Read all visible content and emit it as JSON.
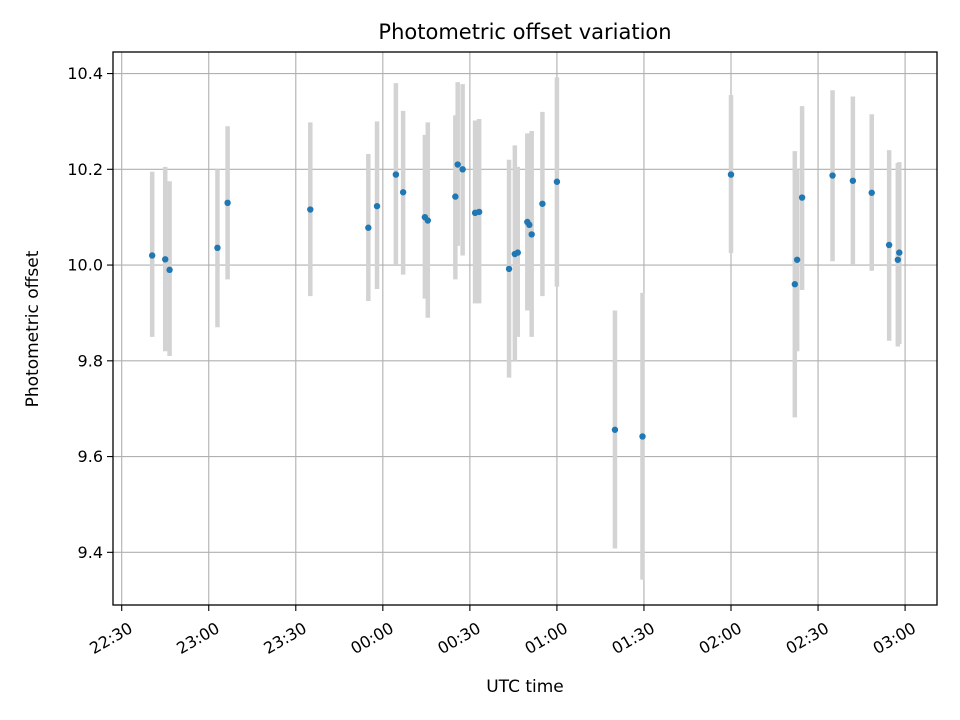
{
  "colors": {
    "marker": "#1f77b4",
    "errorbar": "#d3d3d3",
    "grid": "#b0b0b0",
    "background": "#ffffff"
  },
  "chart_data": {
    "type": "scatter",
    "title": "Photometric offset variation",
    "xlabel": "UTC time",
    "ylabel": "Photometric offset",
    "x_unit": "UTC time (HH:MM), times after midnight are on the following day",
    "xlim": [
      "22:27",
      "03:11"
    ],
    "ylim": [
      9.29,
      10.445
    ],
    "x_ticks": [
      "22:30",
      "23:00",
      "23:30",
      "00:00",
      "00:30",
      "01:00",
      "01:30",
      "02:00",
      "02:30",
      "03:00"
    ],
    "y_ticks": [
      "9.4",
      "9.6",
      "9.8",
      "10.0",
      "10.2",
      "10.4"
    ],
    "grid": true,
    "legend": "none",
    "points": [
      {
        "x": "22:40.5",
        "y": 10.02,
        "lo": 9.85,
        "hi": 10.195
      },
      {
        "x": "22:45.0",
        "y": 10.012,
        "lo": 9.82,
        "hi": 10.205
      },
      {
        "x": "22:46.5",
        "y": 9.99,
        "lo": 9.81,
        "hi": 10.175
      },
      {
        "x": "23:03.0",
        "y": 10.036,
        "lo": 9.87,
        "hi": 10.2
      },
      {
        "x": "23:06.5",
        "y": 10.13,
        "lo": 9.97,
        "hi": 10.29
      },
      {
        "x": "23:35.0",
        "y": 10.116,
        "lo": 9.935,
        "hi": 10.298
      },
      {
        "x": "23:55.0",
        "y": 10.078,
        "lo": 9.925,
        "hi": 10.232
      },
      {
        "x": "23:58.0",
        "y": 10.123,
        "lo": 9.95,
        "hi": 10.3
      },
      {
        "x": "00:04.5",
        "y": 10.189,
        "lo": 10.0,
        "hi": 10.38
      },
      {
        "x": "00:07.0",
        "y": 10.152,
        "lo": 9.98,
        "hi": 10.322
      },
      {
        "x": "00:14.5",
        "y": 10.1,
        "lo": 9.93,
        "hi": 10.272
      },
      {
        "x": "00:15.5",
        "y": 10.093,
        "lo": 9.89,
        "hi": 10.298
      },
      {
        "x": "00:25.0",
        "y": 10.143,
        "lo": 9.97,
        "hi": 10.313
      },
      {
        "x": "00:25.8",
        "y": 10.21,
        "lo": 10.04,
        "hi": 10.382
      },
      {
        "x": "00:27.5",
        "y": 10.2,
        "lo": 10.02,
        "hi": 10.378
      },
      {
        "x": "00:31.8",
        "y": 10.109,
        "lo": 9.92,
        "hi": 10.302
      },
      {
        "x": "00:33.2",
        "y": 10.111,
        "lo": 9.92,
        "hi": 10.305
      },
      {
        "x": "00:43.5",
        "y": 9.992,
        "lo": 9.765,
        "hi": 10.22
      },
      {
        "x": "00:45.5",
        "y": 10.023,
        "lo": 9.8,
        "hi": 10.25
      },
      {
        "x": "00:46.5",
        "y": 10.026,
        "lo": 9.85,
        "hi": 10.205
      },
      {
        "x": "00:49.8",
        "y": 10.09,
        "lo": 9.905,
        "hi": 10.275
      },
      {
        "x": "00:50.5",
        "y": 10.084,
        "lo": 9.91,
        "hi": 10.268
      },
      {
        "x": "00:51.3",
        "y": 10.064,
        "lo": 9.85,
        "hi": 10.28
      },
      {
        "x": "00:55.0",
        "y": 10.128,
        "lo": 9.935,
        "hi": 10.32
      },
      {
        "x": "01:00.0",
        "y": 10.174,
        "lo": 9.955,
        "hi": 10.392
      },
      {
        "x": "01:20.0",
        "y": 9.656,
        "lo": 9.408,
        "hi": 9.905
      },
      {
        "x": "01:29.5",
        "y": 9.642,
        "lo": 9.343,
        "hi": 9.942
      },
      {
        "x": "02:00.0",
        "y": 10.189,
        "lo": 10.025,
        "hi": 10.355
      },
      {
        "x": "02:22.0",
        "y": 9.96,
        "lo": 9.682,
        "hi": 10.238
      },
      {
        "x": "02:22.8",
        "y": 10.011,
        "lo": 9.82,
        "hi": 10.2
      },
      {
        "x": "02:24.5",
        "y": 10.141,
        "lo": 9.948,
        "hi": 10.332
      },
      {
        "x": "02:35.0",
        "y": 10.187,
        "lo": 10.008,
        "hi": 10.365
      },
      {
        "x": "02:42.0",
        "y": 10.176,
        "lo": 10.0,
        "hi": 10.352
      },
      {
        "x": "02:48.5",
        "y": 10.151,
        "lo": 9.988,
        "hi": 10.315
      },
      {
        "x": "02:54.5",
        "y": 10.042,
        "lo": 9.842,
        "hi": 10.24
      },
      {
        "x": "02:57.5",
        "y": 10.011,
        "lo": 9.83,
        "hi": 10.213
      },
      {
        "x": "02:58.0",
        "y": 10.026,
        "lo": 9.835,
        "hi": 10.215
      }
    ]
  }
}
